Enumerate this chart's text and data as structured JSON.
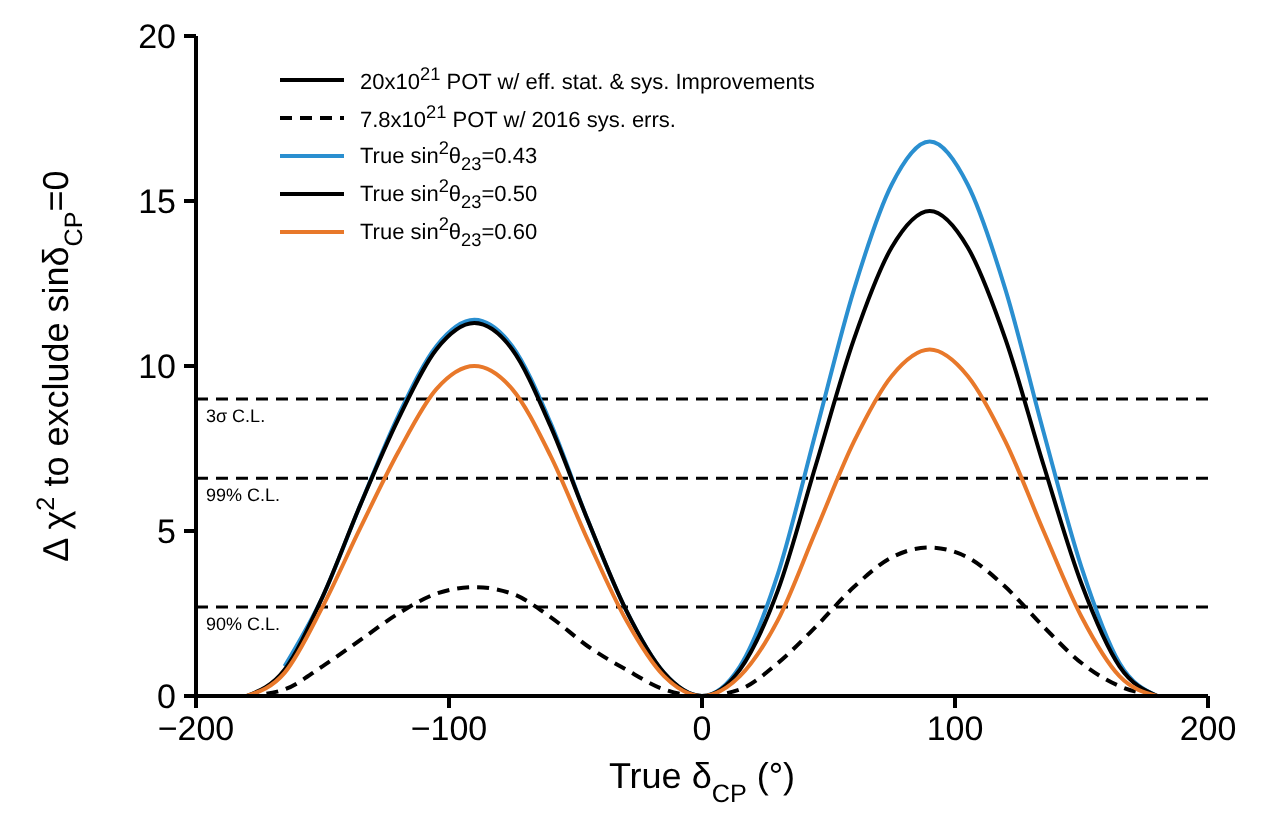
{
  "chart_data": {
    "type": "line",
    "xlabel": "True δ$_{CP}$ (°)",
    "ylabel": "Δ χ$^{2}$ to exclude sinδ$_{CP}$=0",
    "x": [
      -180,
      -165,
      -150,
      -135,
      -120,
      -105,
      -90,
      -75,
      -60,
      -45,
      -30,
      -15,
      0,
      15,
      30,
      45,
      60,
      75,
      90,
      105,
      120,
      135,
      150,
      165,
      180
    ],
    "series": [
      {
        "name": "20x10$^{21}$ POT w/ eff. stat. & sys. Improvements",
        "color": "#000000",
        "values": [
          null,
          null,
          null,
          null,
          null,
          null,
          null,
          null,
          null,
          null,
          null,
          null,
          null,
          null,
          null,
          null,
          null,
          null,
          null,
          null,
          null,
          null,
          null,
          null,
          null
        ]
      },
      {
        "name": "7.8x10$^{21}$ POT w/ 2016 sys. errs.",
        "color": "#000000",
        "line_style": "dashed",
        "values": [
          0,
          0.2,
          0.9,
          1.7,
          2.5,
          3.1,
          3.3,
          3.1,
          2.4,
          1.5,
          0.8,
          0.2,
          0,
          0.2,
          1.0,
          2.1,
          3.3,
          4.2,
          4.5,
          4.2,
          3.3,
          2.1,
          1.0,
          0.3,
          0
        ]
      },
      {
        "name": "True sin$^{2}$θ$_{23}$=0.43",
        "color": "#2a8fd0",
        "values": [
          null,
          0.9,
          3.0,
          5.8,
          8.5,
          10.6,
          11.4,
          10.6,
          8.3,
          5.3,
          2.6,
          0.7,
          0,
          0.9,
          3.7,
          8.0,
          12.3,
          15.5,
          16.8,
          15.5,
          12.3,
          8.0,
          3.9,
          1.0,
          0
        ]
      },
      {
        "name": "True sin$^{2}$θ$_{23}$=0.50",
        "color": "#000000",
        "values": [
          0,
          0.8,
          3.0,
          5.8,
          8.4,
          10.5,
          11.3,
          10.5,
          8.2,
          5.3,
          2.6,
          0.7,
          0,
          0.8,
          3.2,
          7.0,
          10.8,
          13.6,
          14.7,
          13.6,
          10.8,
          7.0,
          3.4,
          0.9,
          0
        ]
      },
      {
        "name": "True sin$^{2}$θ$_{23}$=0.60",
        "color": "#e8782a",
        "values": [
          0,
          0.7,
          2.7,
          5.1,
          7.4,
          9.3,
          10.0,
          9.3,
          7.3,
          4.7,
          2.3,
          0.6,
          0,
          0.6,
          2.3,
          5.0,
          7.7,
          9.7,
          10.5,
          9.7,
          7.7,
          5.0,
          2.4,
          0.6,
          0
        ]
      }
    ],
    "xlim": [
      -200,
      200
    ],
    "xticks": [
      {
        "value": -200,
        "label": "−200"
      },
      {
        "value": -100,
        "label": "−100"
      },
      0,
      100,
      200
    ],
    "ylim": [
      0,
      20
    ],
    "yticks": [
      0,
      5,
      10,
      15,
      20
    ],
    "ref_lines": [
      {
        "axis": "y",
        "value": 9.0,
        "label": "3σ C.L.",
        "color": "#000000",
        "line_style": "dashed"
      },
      {
        "axis": "y",
        "value": 6.6,
        "label": "99% C.L.",
        "color": "#000000",
        "line_style": "dashed"
      },
      {
        "axis": "y",
        "value": 2.7,
        "label": "90% C.L.",
        "color": "#000000",
        "line_style": "dashed"
      }
    ],
    "legend": "top left",
    "grid": false,
    "marker": "none",
    "line_style": "solid"
  }
}
